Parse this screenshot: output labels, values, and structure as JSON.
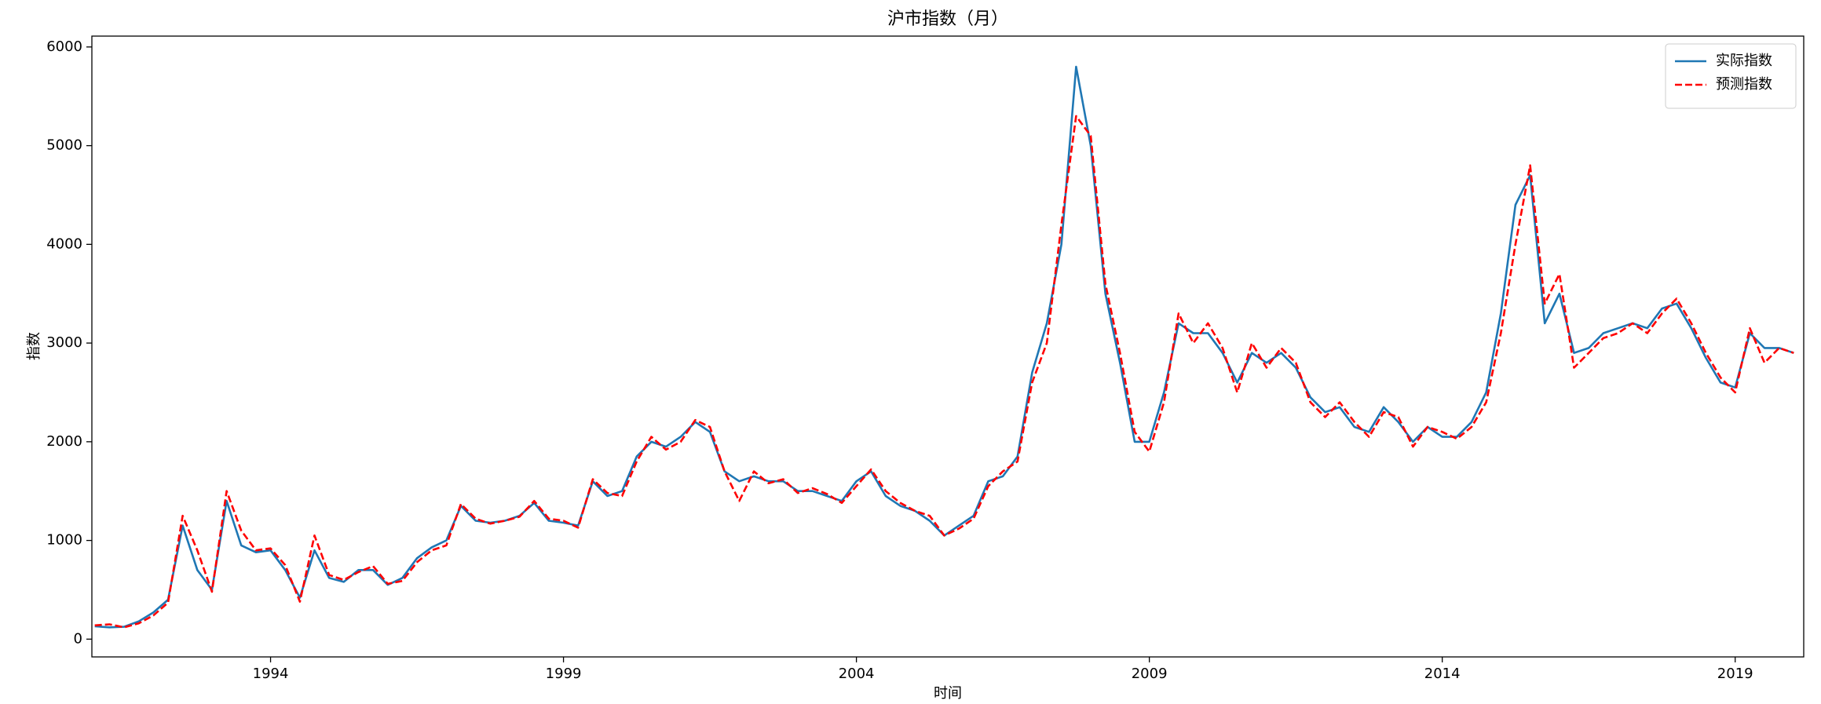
{
  "chart_data": {
    "type": "line",
    "title": "沪市指数（月）",
    "x_label": "时间",
    "y_label": "指数",
    "x": [
      1991.0,
      1991.25,
      1991.5,
      1991.75,
      1992.0,
      1992.25,
      1992.5,
      1992.75,
      1993.0,
      1993.25,
      1993.5,
      1993.75,
      1994.0,
      1994.25,
      1994.5,
      1994.75,
      1995.0,
      1995.25,
      1995.5,
      1995.75,
      1996.0,
      1996.25,
      1996.5,
      1996.75,
      1997.0,
      1997.25,
      1997.5,
      1997.75,
      1998.0,
      1998.25,
      1998.5,
      1998.75,
      1999.0,
      1999.25,
      1999.5,
      1999.75,
      2000.0,
      2000.25,
      2000.5,
      2000.75,
      2001.0,
      2001.25,
      2001.5,
      2001.75,
      2002.0,
      2002.25,
      2002.5,
      2002.75,
      2003.0,
      2003.25,
      2003.5,
      2003.75,
      2004.0,
      2004.25,
      2004.5,
      2004.75,
      2005.0,
      2005.25,
      2005.5,
      2005.75,
      2006.0,
      2006.25,
      2006.5,
      2006.75,
      2007.0,
      2007.25,
      2007.5,
      2007.75,
      2008.0,
      2008.25,
      2008.5,
      2008.75,
      2009.0,
      2009.25,
      2009.5,
      2009.75,
      2010.0,
      2010.25,
      2010.5,
      2010.75,
      2011.0,
      2011.25,
      2011.5,
      2011.75,
      2012.0,
      2012.25,
      2012.5,
      2012.75,
      2013.0,
      2013.25,
      2013.5,
      2013.75,
      2014.0,
      2014.25,
      2014.5,
      2014.75,
      2015.0,
      2015.25,
      2015.5,
      2015.75,
      2016.0,
      2016.25,
      2016.5,
      2016.75,
      2017.0,
      2017.25,
      2017.5,
      2017.75,
      2018.0,
      2018.25,
      2018.5,
      2018.75,
      2019.0,
      2019.25,
      2019.5,
      2019.75,
      2020.0
    ],
    "series": [
      {
        "name": "实际指数",
        "color": "#1f77b4",
        "linestyle": "solid",
        "values": [
          130,
          120,
          125,
          180,
          270,
          400,
          1150,
          700,
          500,
          1400,
          950,
          880,
          900,
          700,
          420,
          900,
          620,
          580,
          700,
          700,
          550,
          620,
          820,
          930,
          1000,
          1350,
          1200,
          1180,
          1200,
          1250,
          1380,
          1200,
          1180,
          1150,
          1600,
          1450,
          1500,
          1850,
          2000,
          1950,
          2050,
          2200,
          2100,
          1700,
          1600,
          1650,
          1600,
          1600,
          1500,
          1500,
          1450,
          1400,
          1600,
          1700,
          1450,
          1350,
          1300,
          1200,
          1050,
          1150,
          1250,
          1600,
          1650,
          1850,
          2700,
          3200,
          4000,
          5800,
          5000,
          3500,
          2800,
          2000,
          2000,
          2500,
          3200,
          3100,
          3100,
          2900,
          2600,
          2900,
          2800,
          2900,
          2750,
          2450,
          2300,
          2350,
          2150,
          2100,
          2350,
          2200,
          2000,
          2150,
          2050,
          2050,
          2200,
          2500,
          3300,
          4400,
          4700,
          3200,
          3500,
          2900,
          2950,
          3100,
          3150,
          3200,
          3150,
          3350,
          3400,
          3150,
          2850,
          2600,
          2550,
          3100,
          2950,
          2950,
          2900
        ]
      },
      {
        "name": "预测指数",
        "color": "#ff0000",
        "linestyle": "dashed",
        "values": [
          140,
          150,
          120,
          160,
          240,
          370,
          1250,
          900,
          480,
          1500,
          1100,
          900,
          920,
          750,
          380,
          1050,
          650,
          600,
          680,
          740,
          560,
          590,
          780,
          900,
          950,
          1370,
          1220,
          1170,
          1200,
          1240,
          1400,
          1220,
          1200,
          1130,
          1620,
          1480,
          1450,
          1800,
          2050,
          1920,
          2000,
          2220,
          2150,
          1700,
          1400,
          1700,
          1580,
          1620,
          1480,
          1530,
          1470,
          1380,
          1550,
          1720,
          1500,
          1380,
          1300,
          1250,
          1050,
          1120,
          1220,
          1550,
          1700,
          1800,
          2600,
          3000,
          4200,
          5300,
          5100,
          3600,
          2900,
          2100,
          1900,
          2400,
          3300,
          3000,
          3200,
          2950,
          2500,
          3000,
          2750,
          2950,
          2800,
          2400,
          2250,
          2400,
          2200,
          2050,
          2300,
          2250,
          1950,
          2150,
          2100,
          2030,
          2150,
          2400,
          3100,
          4000,
          4800,
          3400,
          3700,
          2750,
          2900,
          3050,
          3100,
          3200,
          3100,
          3300,
          3450,
          3200,
          2900,
          2650,
          2500,
          3150,
          2800,
          2950,
          2900
        ]
      }
    ],
    "xlim": [
      1990.95,
      2020.17
    ],
    "xticks": [
      1994,
      1999,
      2004,
      2009,
      2014,
      2019
    ],
    "ylim": [
      -180,
      6110
    ],
    "yticks": [
      0,
      1000,
      2000,
      3000,
      4000,
      5000,
      6000
    ],
    "legend": "upper right"
  }
}
